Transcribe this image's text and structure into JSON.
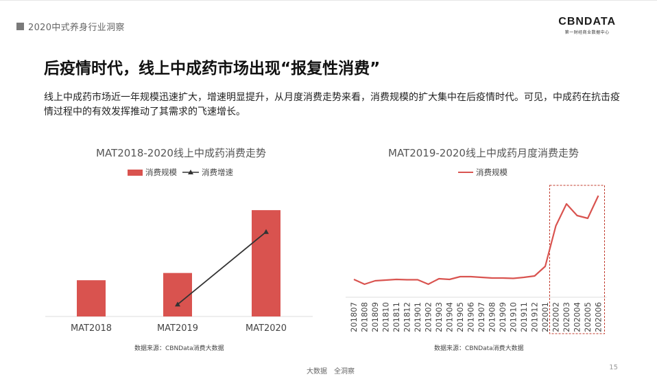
{
  "header": {
    "section_label": "2020中式养身行业洞察"
  },
  "logo": {
    "brand": "CBNDATA",
    "tagline": "第一财经商业数据中心"
  },
  "page": {
    "title": "后疫情时代，线上中成药市场出现“报复性消费”",
    "description": "线上中成药市场近一年规模迅速扩大，增速明显提升，从月度消费走势来看，消费规模的扩大集中在后疫情时代。可见，中成药在抗击疫情过程中的有效发挥推动了其需求的飞速增长。"
  },
  "chart_data": [
    {
      "type": "bar",
      "title": "MAT2018-2020线上中成药消费走势",
      "categories": [
        "MAT2018",
        "MAT2019",
        "MAT2020"
      ],
      "series": [
        {
          "name": "消费规模",
          "type": "bar",
          "values": [
            30,
            36,
            88
          ]
        },
        {
          "name": "消费增速",
          "type": "line",
          "values": [
            null,
            10,
            70
          ]
        }
      ],
      "ylim": [
        0,
        100
      ],
      "axis_labels_shown": false,
      "grid": false,
      "legend": "top-center",
      "colors": {
        "bar": "#d9534f",
        "line": "#333333"
      },
      "source": "数据来源：CBNData消费大数据"
    },
    {
      "type": "line",
      "title": "MAT2019-2020线上中成药月度消费走势",
      "categories": [
        "201807",
        "201808",
        "201809",
        "201810",
        "201811",
        "201812",
        "201901",
        "201902",
        "201903",
        "201904",
        "201905",
        "201906",
        "201907",
        "201908",
        "201909",
        "201910",
        "201911",
        "201912",
        "202001",
        "202002",
        "202003",
        "202004",
        "202005",
        "202006"
      ],
      "series": [
        {
          "name": "消费规模",
          "values": [
            10,
            3,
            8,
            9,
            10,
            9.5,
            9.5,
            3,
            11,
            10,
            14,
            14,
            13,
            12,
            12,
            11.5,
            13,
            15,
            29,
            88,
            120,
            103,
            99,
            132
          ]
        }
      ],
      "ylim": [
        0,
        140
      ],
      "axis_labels_shown": false,
      "grid": false,
      "legend": "top-center",
      "highlight": {
        "from": "202002",
        "to": "202006",
        "style": "dashed-box"
      },
      "colors": {
        "line": "#d9534f"
      },
      "source": "数据来源：CBNData消费大数据"
    }
  ],
  "footer": {
    "text": "大数据　全洞察",
    "page_number": "15"
  }
}
